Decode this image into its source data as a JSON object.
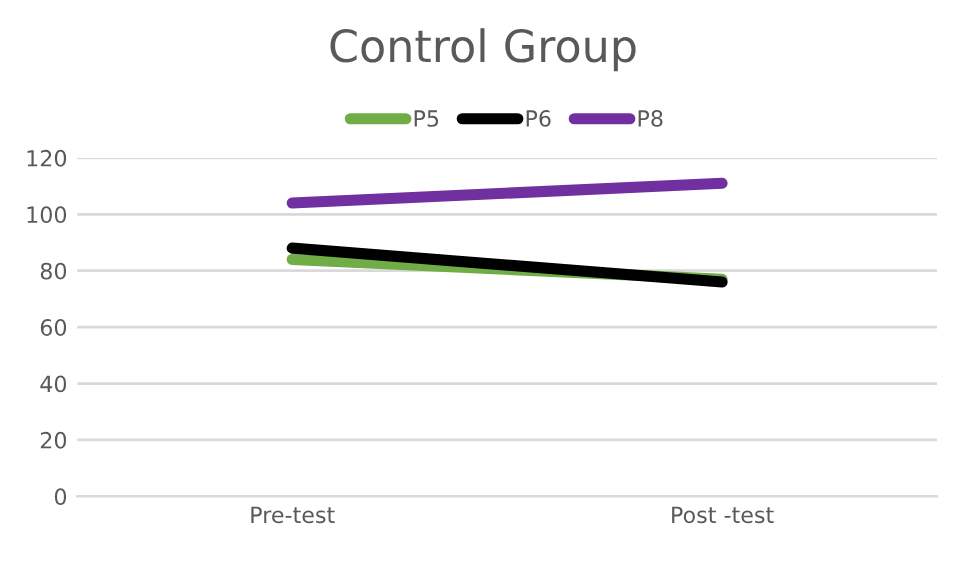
{
  "chart_data": {
    "type": "line",
    "title": "Control Group",
    "categories": [
      "Pre-test",
      "Post -test"
    ],
    "series": [
      {
        "name": "P5",
        "color": "#70ad47",
        "values": [
          84,
          77
        ]
      },
      {
        "name": "P6",
        "color": "#000000",
        "values": [
          88,
          76
        ]
      },
      {
        "name": "P8",
        "color": "#7030a0",
        "values": [
          104,
          111
        ]
      }
    ],
    "ylim": [
      0,
      120
    ],
    "yticks": [
      0,
      20,
      40,
      60,
      80,
      100,
      120
    ],
    "grid": "y",
    "legend": "top",
    "marker": "none",
    "line_style": "solid"
  }
}
